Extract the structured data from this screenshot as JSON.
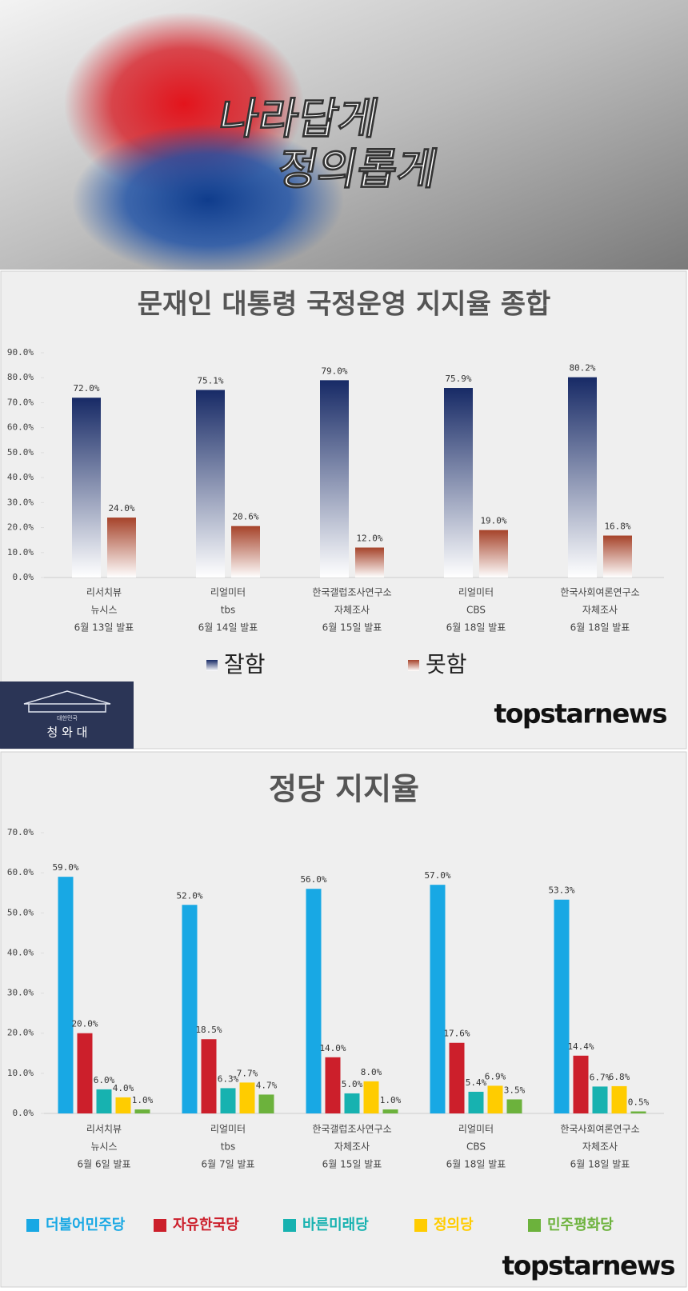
{
  "banner": {
    "line1": "나라답게",
    "line2": "정의롭게"
  },
  "logos": {
    "cheongwadae_small": "대한민국",
    "cheongwadae": "청 와 대",
    "brand_top": "topstarnews",
    "brand_bottom": "topstarnews"
  },
  "chart_data": [
    {
      "type": "bar",
      "title": "문재인 대통령 국정운영 지지율 종합",
      "categories": [
        [
          "리서치뷰",
          "뉴시스",
          "6월 13일 발표"
        ],
        [
          "리얼미터",
          "tbs",
          "6월 14일 발표"
        ],
        [
          "한국갤럽조사연구소",
          "자체조사",
          "6월 15일 발표"
        ],
        [
          "리얼미터",
          "CBS",
          "6월 18일 발표"
        ],
        [
          "한국사회여론연구소",
          "자체조사",
          "6월 18일 발표"
        ]
      ],
      "series": [
        {
          "name": "잘함",
          "color": "#172a66",
          "values": [
            72.0,
            75.1,
            79.0,
            75.9,
            80.2
          ],
          "value_labels": [
            "72.0%",
            "75.1%",
            "79.0%",
            "75.9%",
            "80.2%"
          ]
        },
        {
          "name": "못함",
          "color": "#a6432a",
          "values": [
            24.0,
            20.6,
            12.0,
            19.0,
            16.8
          ],
          "value_labels": [
            "24.0%",
            "20.6%",
            "12.0%",
            "19.0%",
            "16.8%"
          ]
        }
      ],
      "gradient": true,
      "ylim": [
        0,
        90
      ],
      "yticks": [
        {
          "value": 0,
          "label": "0.0%"
        },
        {
          "value": 10,
          "label": "10.0%"
        },
        {
          "value": 20,
          "label": "20.0%"
        },
        {
          "value": 30,
          "label": "30.0%"
        },
        {
          "value": 40,
          "label": "40.0%"
        },
        {
          "value": 50,
          "label": "50.0%"
        },
        {
          "value": 60,
          "label": "60.0%"
        },
        {
          "value": 70,
          "label": "70.0%"
        },
        {
          "value": 80,
          "label": "80.0%"
        },
        {
          "value": 90,
          "label": "90.0%"
        }
      ]
    },
    {
      "type": "bar",
      "title": "정당 지지율",
      "categories": [
        [
          "리서치뷰",
          "뉴시스",
          "6월 6일 발표"
        ],
        [
          "리얼미터",
          "tbs",
          "6월 7일 발표"
        ],
        [
          "한국갤럽조사연구소",
          "자체조사",
          "6월 15일 발표"
        ],
        [
          "리얼미터",
          "CBS",
          "6월 18일 발표"
        ],
        [
          "한국사회여론연구소",
          "자체조사",
          "6월 18일 발표"
        ]
      ],
      "series": [
        {
          "name": "더불어민주당",
          "color": "#18a8e4",
          "values": [
            59.0,
            52.0,
            56.0,
            57.0,
            53.3
          ],
          "value_labels": [
            "59.0%",
            "52.0%",
            "56.0%",
            "57.0%",
            "53.3%"
          ]
        },
        {
          "name": "자유한국당",
          "color": "#cc1f2b",
          "values": [
            20.0,
            18.5,
            14.0,
            17.6,
            14.4
          ],
          "value_labels": [
            "20.0%",
            "18.5%",
            "14.0%",
            "17.6%",
            "14.4%"
          ]
        },
        {
          "name": "바른미래당",
          "color": "#17b2b0",
          "values": [
            6.0,
            6.3,
            5.0,
            5.4,
            6.7
          ],
          "value_labels": [
            "6.0%",
            "6.3%",
            "5.0%",
            "5.4%",
            "6.7%"
          ]
        },
        {
          "name": "정의당",
          "color": "#ffcc00",
          "values": [
            4.0,
            7.7,
            8.0,
            6.9,
            6.8
          ],
          "value_labels": [
            "4.0%",
            "7.7%",
            "8.0%",
            "6.9%",
            "6.8%"
          ]
        },
        {
          "name": "민주평화당",
          "color": "#6cb23c",
          "values": [
            1.0,
            4.7,
            1.0,
            3.5,
            0.5
          ],
          "value_labels": [
            "1.0%",
            "4.7%",
            "1.0%",
            "3.5%",
            "0.5%"
          ]
        }
      ],
      "gradient": false,
      "ylim": [
        0,
        70
      ],
      "yticks": [
        {
          "value": 0,
          "label": "0.0%"
        },
        {
          "value": 10,
          "label": "10.0%"
        },
        {
          "value": 20,
          "label": "20.0%"
        },
        {
          "value": 30,
          "label": "30.0%"
        },
        {
          "value": 40,
          "label": "40.0%"
        },
        {
          "value": 50,
          "label": "50.0%"
        },
        {
          "value": 60,
          "label": "60.0%"
        },
        {
          "value": 70,
          "label": "70.0%"
        }
      ]
    }
  ]
}
